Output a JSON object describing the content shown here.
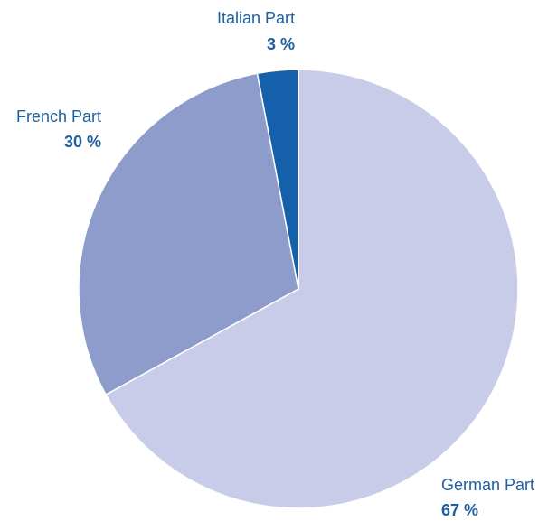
{
  "chart_data": {
    "type": "pie",
    "categories": [
      "German Part",
      "French Part",
      "Italian Part"
    ],
    "values": [
      67,
      30,
      3
    ],
    "value_labels": [
      "67 %",
      "30 %",
      "3 %"
    ],
    "colors": [
      "#c8cce8",
      "#8d9cca",
      "#1460aa"
    ]
  }
}
